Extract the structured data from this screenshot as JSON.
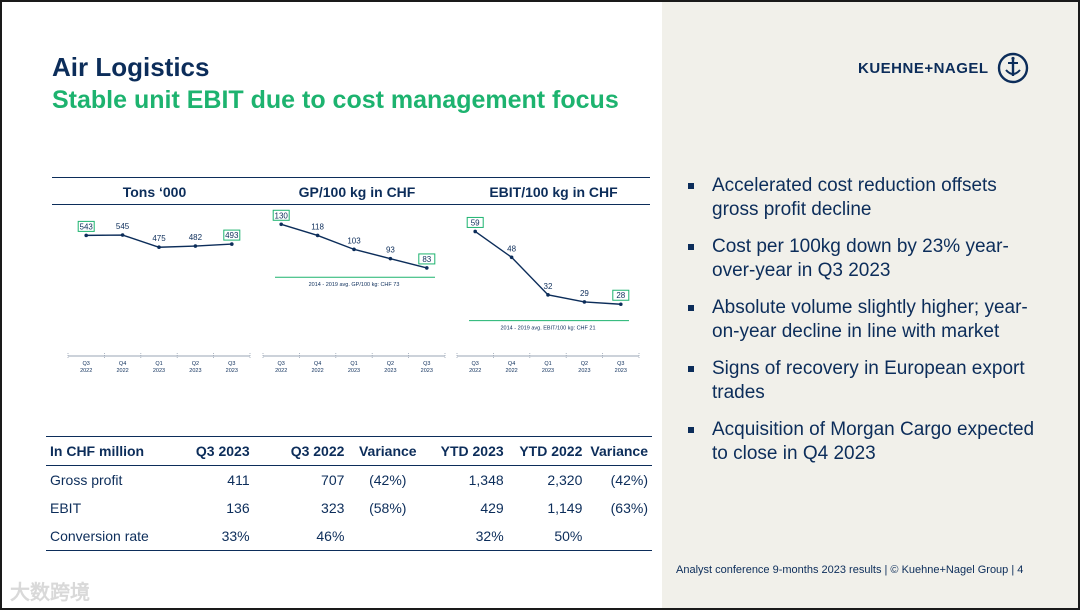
{
  "header": {
    "title": "Air Logistics",
    "subtitle": "Stable unit EBIT due to cost management focus",
    "logo_text": "KUEHNE+NAGEL"
  },
  "colors": {
    "navy": "#0c2d5a",
    "green": "#1db36f",
    "panel": "#f1f0ea"
  },
  "chart_data": [
    {
      "type": "line",
      "title": "Tons ‘000",
      "categories": [
        "Q3 2022",
        "Q4 2022",
        "Q1 2023",
        "Q2 2023",
        "Q3 2023"
      ],
      "tick_top": [
        "Q3",
        "Q4",
        "Q1",
        "Q2",
        "Q3"
      ],
      "tick_bottom": [
        "2022",
        "2022",
        "2023",
        "2023",
        "2023"
      ],
      "values": [
        543,
        545,
        475,
        482,
        493
      ],
      "boxed": [
        0,
        4
      ],
      "ylim": [
        0,
        660
      ],
      "avg_line": null
    },
    {
      "type": "line",
      "title": "GP/100 kg in CHF",
      "categories": [
        "Q3 2022",
        "Q4 2022",
        "Q1 2023",
        "Q2 2023",
        "Q3 2023"
      ],
      "tick_top": [
        "Q3",
        "Q4",
        "Q1",
        "Q2",
        "Q3"
      ],
      "tick_bottom": [
        "2022",
        "2022",
        "2023",
        "2023",
        "2023"
      ],
      "values": [
        130,
        118,
        103,
        93,
        83
      ],
      "boxed": [
        0,
        4
      ],
      "ylim": [
        0,
        140
      ],
      "avg_line": {
        "value": 73,
        "label": "2014 - 2019 avg. GP/100 kg: CHF 73"
      }
    },
    {
      "type": "line",
      "title": "EBIT/100 kg in CHF",
      "categories": [
        "Q3 2022",
        "Q4 2022",
        "Q1 2023",
        "Q2 2023",
        "Q3 2023"
      ],
      "tick_top": [
        "Q3",
        "Q4",
        "Q1",
        "Q2",
        "Q3"
      ],
      "tick_bottom": [
        "2022",
        "2022",
        "2023",
        "2023",
        "2023"
      ],
      "values": [
        59,
        48,
        32,
        29,
        28
      ],
      "boxed": [
        0,
        4
      ],
      "ylim": [
        0,
        66
      ],
      "avg_line": {
        "value": 21,
        "label": "2014 - 2019 avg. EBIT/100 kg: CHF 21"
      }
    }
  ],
  "table": {
    "columns": [
      "In CHF million",
      "Q3 2023",
      "Q3 2022",
      "Variance",
      "YTD 2023",
      "YTD 2022",
      "Variance"
    ],
    "rows": [
      [
        "Gross profit",
        "411",
        "707",
        "(42%)",
        "1,348",
        "2,320",
        "(42%)"
      ],
      [
        "EBIT",
        "136",
        "323",
        "(58%)",
        "429",
        "1,149",
        "(63%)"
      ],
      [
        "Conversion rate",
        "33%",
        "46%",
        "",
        "32%",
        "50%",
        ""
      ]
    ]
  },
  "bullets": [
    "Accelerated cost reduction offsets gross profit decline",
    "Cost per 100kg down by 23% year-over-year in Q3 2023",
    "Absolute volume slightly higher; year-on-year decline in line with market",
    "Signs of recovery in European export trades",
    "Acquisition of Morgan Cargo expected to close in Q4 2023"
  ],
  "footer": "Analyst conference 9-months 2023 results | © Kuehne+Nagel Group | 4",
  "watermark": "大数跨境"
}
